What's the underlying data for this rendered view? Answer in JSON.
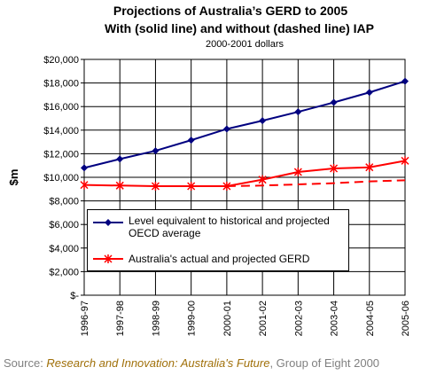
{
  "chart_data": {
    "type": "line",
    "title": "Projections of Australia’s GERD to 2005",
    "subtitle": "With (solid line) and without (dashed line) IAP",
    "note": "2000-2001 dollars",
    "y_label": "$m",
    "categories": [
      "1996-97",
      "1997-98",
      "1998-99",
      "1999-00",
      "2000-01",
      "2001-02",
      "2002-03",
      "2003-04",
      "2004-05",
      "2005-06"
    ],
    "series": [
      {
        "name": "Level equivalent to historical and projected OECD average",
        "color": "#000080",
        "marker": "diamond",
        "dash": false,
        "values": [
          10800,
          11550,
          12250,
          13150,
          14100,
          14800,
          15550,
          16350,
          17200,
          18150
        ]
      },
      {
        "name": "Australia's actual and projected GERD",
        "color": "#ff0000",
        "marker": "star",
        "dash": false,
        "values": [
          9350,
          9300,
          9250,
          9250,
          9250,
          9800,
          10450,
          10750,
          10850,
          11400
        ]
      },
      {
        "color": "#ff0000",
        "marker": "none",
        "dash": true,
        "values": [
          null,
          null,
          null,
          null,
          9250,
          9300,
          9400,
          9500,
          9650,
          9750
        ]
      }
    ],
    "ylim": [
      0,
      20000
    ],
    "yticks": [
      {
        "value": 0,
        "label": "$-"
      },
      {
        "value": 2000,
        "label": "$2,000"
      },
      {
        "value": 4000,
        "label": "$4,000"
      },
      {
        "value": 6000,
        "label": "$6,000"
      },
      {
        "value": 8000,
        "label": "$8,000"
      },
      {
        "value": 10000,
        "label": "$10,000"
      },
      {
        "value": 12000,
        "label": "$12,000"
      },
      {
        "value": 14000,
        "label": "$14,000"
      },
      {
        "value": 16000,
        "label": "$16,000"
      },
      {
        "value": 18000,
        "label": "$18,000"
      },
      {
        "value": 20000,
        "label": "$20,000"
      }
    ],
    "grid": true
  },
  "source": {
    "prefix": "Source: ",
    "title": "Research and Innovation: Australia's Future",
    "suffix": ", Group of Eight 2000"
  }
}
